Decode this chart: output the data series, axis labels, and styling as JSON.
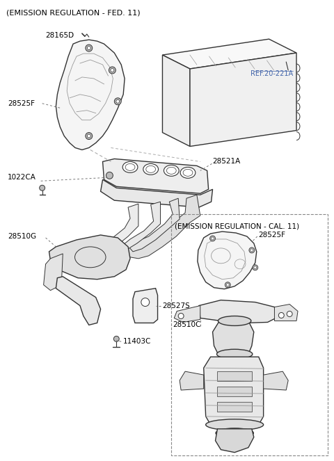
{
  "title_fed": "(EMISSION REGULATION - FED. 11)",
  "title_cal": "(EMISSION REGULATION - CAL. 11)",
  "ref_label": "REF.20-221A",
  "bg_color": "#ffffff",
  "line_color": "#333333",
  "label_color": "#000000",
  "ref_color": "#4466aa",
  "figsize": [
    4.8,
    6.63
  ],
  "dpi": 100
}
